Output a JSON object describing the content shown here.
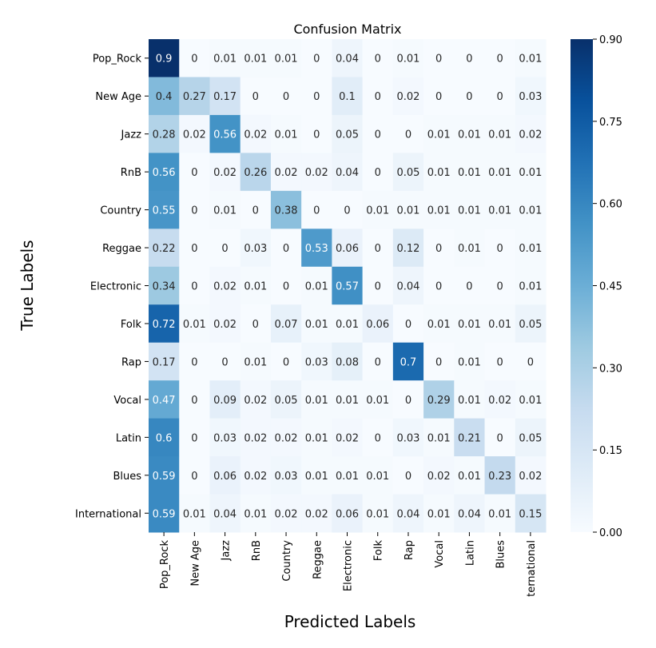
{
  "chart_data": {
    "type": "heatmap",
    "title": "Confusion Matrix",
    "xlabel": "Predicted Labels",
    "ylabel": "True Labels",
    "x_categories": [
      "Pop_Rock",
      "New Age",
      "Jazz",
      "RnB",
      "Country",
      "Reggae",
      "Electronic",
      "Folk",
      "Rap",
      "Vocal",
      "Latin",
      "Blues",
      "International"
    ],
    "x_tick_labels": [
      "Pop_Rock",
      "New Age",
      "Jazz",
      "RnB",
      "Country",
      "Reggae",
      "Electronic",
      "Folk",
      "Rap",
      "Vocal",
      "Latin",
      "Blues",
      "ternational"
    ],
    "y_categories": [
      "Pop_Rock",
      "New Age",
      "Jazz",
      "RnB",
      "Country",
      "Reggae",
      "Electronic",
      "Folk",
      "Rap",
      "Vocal",
      "Latin",
      "Blues",
      "International"
    ],
    "values": [
      [
        0.9,
        0,
        0.01,
        0.01,
        0.01,
        0,
        0.04,
        0,
        0.01,
        0,
        0,
        0,
        0.01
      ],
      [
        0.4,
        0.27,
        0.17,
        0,
        0,
        0,
        0.1,
        0,
        0.02,
        0,
        0,
        0,
        0.03
      ],
      [
        0.28,
        0.02,
        0.56,
        0.02,
        0.01,
        0,
        0.05,
        0,
        0,
        0.01,
        0.01,
        0.01,
        0.02
      ],
      [
        0.56,
        0,
        0.02,
        0.26,
        0.02,
        0.02,
        0.04,
        0,
        0.05,
        0.01,
        0.01,
        0.01,
        0.01
      ],
      [
        0.55,
        0,
        0.01,
        0,
        0.38,
        0,
        0,
        0.01,
        0.01,
        0.01,
        0.01,
        0.01,
        0.01
      ],
      [
        0.22,
        0,
        0,
        0.03,
        0,
        0.53,
        0.06,
        0,
        0.12,
        0,
        0.01,
        0,
        0.01
      ],
      [
        0.34,
        0,
        0.02,
        0.01,
        0,
        0.01,
        0.57,
        0,
        0.04,
        0,
        0,
        0,
        0.01
      ],
      [
        0.72,
        0.01,
        0.02,
        0,
        0.07,
        0.01,
        0.01,
        0.06,
        0,
        0.01,
        0.01,
        0.01,
        0.05
      ],
      [
        0.17,
        0,
        0,
        0.01,
        0,
        0.03,
        0.08,
        0,
        0.7,
        0,
        0.01,
        0,
        0
      ],
      [
        0.47,
        0,
        0.09,
        0.02,
        0.05,
        0.01,
        0.01,
        0.01,
        0,
        0.29,
        0.01,
        0.02,
        0.01
      ],
      [
        0.6,
        0,
        0.03,
        0.02,
        0.02,
        0.01,
        0.02,
        0,
        0.03,
        0.01,
        0.21,
        0,
        0.05
      ],
      [
        0.59,
        0,
        0.06,
        0.02,
        0.03,
        0.01,
        0.01,
        0.01,
        0,
        0.02,
        0.01,
        0.23,
        0.02
      ],
      [
        0.59,
        0.01,
        0.04,
        0.01,
        0.02,
        0.02,
        0.06,
        0.01,
        0.04,
        0.01,
        0.04,
        0.01,
        0.15
      ]
    ],
    "value_range": [
      0,
      0.9
    ],
    "colormap": "Blues",
    "colors": {
      "low": "#f7fbff",
      "high": "#08306b"
    },
    "colorbar_ticks": [
      "0.00",
      "0.15",
      "0.30",
      "0.45",
      "0.60",
      "0.75",
      "0.90"
    ]
  }
}
